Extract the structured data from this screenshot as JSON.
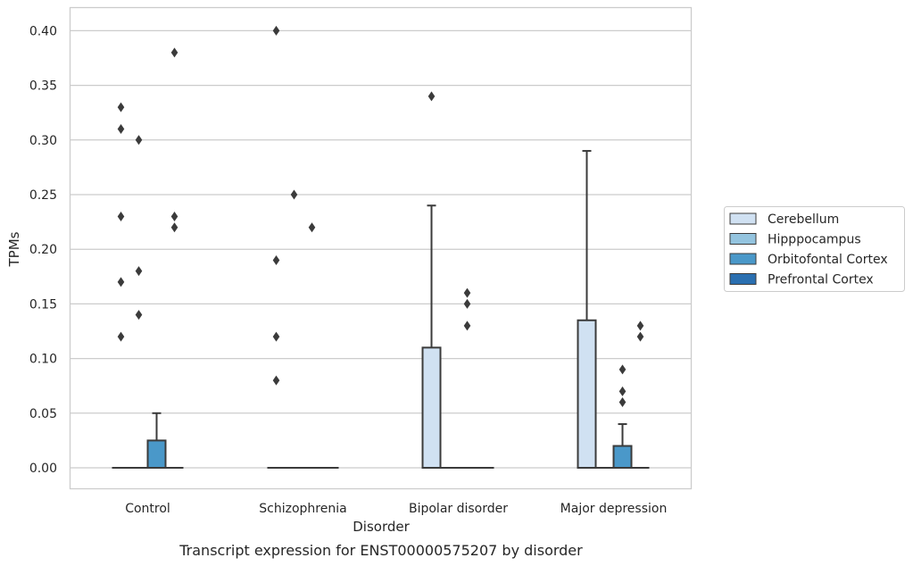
{
  "chart_data": {
    "type": "box",
    "title": "",
    "caption": "Transcript expression for ENST00000575207 by disorder",
    "xlabel": "Disorder",
    "ylabel": "TPMs",
    "ylim": [
      -0.02,
      0.42
    ],
    "yticks": [
      0.0,
      0.05,
      0.1,
      0.15,
      0.2,
      0.25,
      0.3,
      0.35,
      0.4
    ],
    "ytick_labels": [
      "0.00",
      "0.05",
      "0.10",
      "0.15",
      "0.20",
      "0.25",
      "0.30",
      "0.35",
      "0.40"
    ],
    "grid": "horizontal",
    "legend_position": "right",
    "categories": [
      "Control",
      "Schizophrenia",
      "Bipolar disorder",
      "Major depression"
    ],
    "series": [
      {
        "name": "Cerebellum",
        "color": "#d0e1f2",
        "boxes": [
          {
            "q1": 0,
            "median": 0,
            "q3": 0,
            "whisker_low": 0,
            "whisker_high": 0,
            "outliers": [
              0.33,
              0.31,
              0.23,
              0.17,
              0.12
            ]
          },
          {
            "q1": 0,
            "median": 0,
            "q3": 0,
            "whisker_low": 0,
            "whisker_high": 0,
            "outliers": [
              0.4,
              0.19,
              0.12,
              0.08
            ]
          },
          {
            "q1": 0,
            "median": 0,
            "q3": 0.11,
            "whisker_low": 0,
            "whisker_high": 0.24,
            "outliers": [
              0.34
            ]
          },
          {
            "q1": 0,
            "median": 0,
            "q3": 0.135,
            "whisker_low": 0,
            "whisker_high": 0.29,
            "outliers": []
          }
        ]
      },
      {
        "name": "Hipppocampus",
        "color": "#94c4df",
        "boxes": [
          {
            "q1": 0,
            "median": 0,
            "q3": 0,
            "whisker_low": 0,
            "whisker_high": 0,
            "outliers": [
              0.3,
              0.18,
              0.14
            ]
          },
          {
            "q1": 0,
            "median": 0,
            "q3": 0,
            "whisker_low": 0,
            "whisker_high": 0,
            "outliers": [
              0.25
            ]
          },
          {
            "q1": 0,
            "median": 0,
            "q3": 0,
            "whisker_low": 0,
            "whisker_high": 0,
            "outliers": []
          },
          {
            "q1": 0,
            "median": 0,
            "q3": 0,
            "whisker_low": 0,
            "whisker_high": 0,
            "outliers": []
          }
        ]
      },
      {
        "name": "Orbitofontal Cortex",
        "color": "#4a98c9",
        "boxes": [
          {
            "q1": 0,
            "median": 0,
            "q3": 0.025,
            "whisker_low": 0,
            "whisker_high": 0.05,
            "outliers": []
          },
          {
            "q1": 0,
            "median": 0,
            "q3": 0,
            "whisker_low": 0,
            "whisker_high": 0,
            "outliers": [
              0.22
            ]
          },
          {
            "q1": 0,
            "median": 0,
            "q3": 0,
            "whisker_low": 0,
            "whisker_high": 0,
            "outliers": [
              0.16,
              0.15,
              0.13
            ]
          },
          {
            "q1": 0,
            "median": 0,
            "q3": 0.02,
            "whisker_low": 0,
            "whisker_high": 0.04,
            "outliers": [
              0.09,
              0.07,
              0.06
            ]
          }
        ]
      },
      {
        "name": "Prefrontal Cortex",
        "color": "#2a6fb0",
        "boxes": [
          {
            "q1": 0,
            "median": 0,
            "q3": 0,
            "whisker_low": 0,
            "whisker_high": 0,
            "outliers": [
              0.38,
              0.23,
              0.22
            ]
          },
          {
            "q1": 0,
            "median": 0,
            "q3": 0,
            "whisker_low": 0,
            "whisker_high": 0,
            "outliers": []
          },
          {
            "q1": 0,
            "median": 0,
            "q3": 0,
            "whisker_low": 0,
            "whisker_high": 0,
            "outliers": []
          },
          {
            "q1": 0,
            "median": 0,
            "q3": 0,
            "whisker_low": 0,
            "whisker_high": 0,
            "outliers": [
              0.13,
              0.12
            ]
          }
        ]
      }
    ]
  }
}
